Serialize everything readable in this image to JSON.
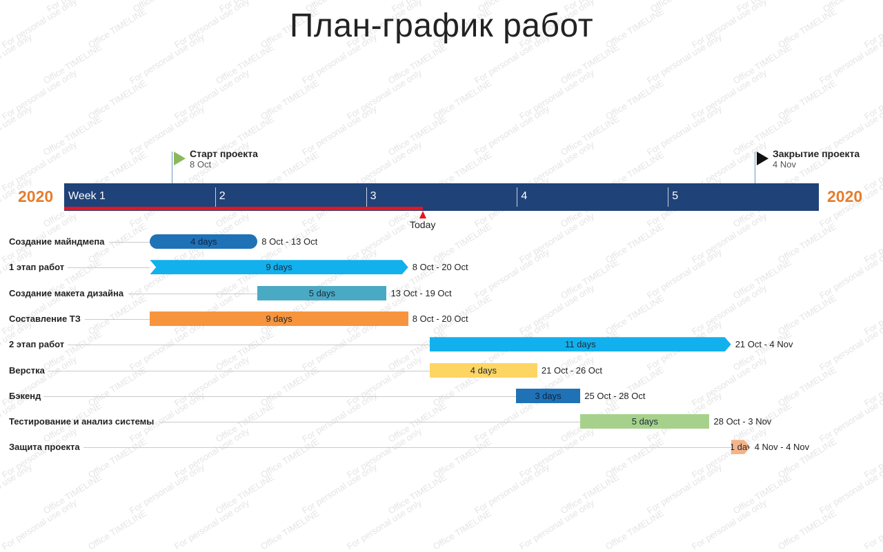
{
  "title": "План-график работ",
  "year_left": "2020",
  "year_right": "2020",
  "weeks": [
    "Week 1",
    "2",
    "3",
    "4",
    "5"
  ],
  "today": {
    "label": "Today",
    "date": "2020-10-21"
  },
  "milestones": [
    {
      "title": "Старт проекта",
      "date_label": "8 Oct",
      "date": "2020-10-08",
      "color": "#8cb85c"
    },
    {
      "title": "Закрытие проекта",
      "date_label": "4 Nov",
      "date": "2020-11-04",
      "color": "#111111"
    }
  ],
  "watermark": [
    "Office TIMELINE",
    "For personal use only"
  ],
  "chart_data": {
    "type": "gantt",
    "title": "План-график работ",
    "axis": {
      "unit": "week",
      "ticks": [
        "Week 1",
        "2",
        "3",
        "4",
        "5"
      ]
    },
    "tasks": [
      {
        "name": "Создание майндмепа",
        "start": "2020-10-08",
        "end": "2020-10-13",
        "duration": "4 days",
        "date_range": "8 Oct - 13 Oct",
        "color": "#1f72b6",
        "shape": "rounded"
      },
      {
        "name": "1 этап работ",
        "start": "2020-10-08",
        "end": "2020-10-20",
        "duration": "9 days",
        "date_range": "8 Oct - 20 Oct",
        "color": "#12b0ec",
        "shape": "chevron"
      },
      {
        "name": "Создание макета дизайна",
        "start": "2020-10-13",
        "end": "2020-10-19",
        "duration": "5 days",
        "date_range": "13 Oct - 19 Oct",
        "color": "#4aaac4",
        "shape": "rect"
      },
      {
        "name": "Составление ТЗ",
        "start": "2020-10-08",
        "end": "2020-10-20",
        "duration": "9 days",
        "date_range": "8 Oct - 20 Oct",
        "color": "#f7943e",
        "shape": "rect"
      },
      {
        "name": "2 этап работ",
        "start": "2020-10-21",
        "end": "2020-11-04",
        "duration": "11 days",
        "date_range": "21 Oct - 4 Nov",
        "color": "#12b0ec",
        "shape": "arrow"
      },
      {
        "name": "Верстка",
        "start": "2020-10-21",
        "end": "2020-10-26",
        "duration": "4 days",
        "date_range": "21 Oct - 26 Oct",
        "color": "#fdd563",
        "shape": "rect"
      },
      {
        "name": "Бэкенд",
        "start": "2020-10-25",
        "end": "2020-10-28",
        "duration": "3 days",
        "date_range": "25 Oct - 28 Oct",
        "color": "#1f72b6",
        "shape": "rect"
      },
      {
        "name": "Тестирование и анализ системы",
        "start": "2020-10-28",
        "end": "2020-11-03",
        "duration": "5 days",
        "date_range": "28 Oct - 3 Nov",
        "color": "#a6d18a",
        "shape": "rect"
      },
      {
        "name": "Защита проекта",
        "start": "2020-11-04",
        "end": "2020-11-04",
        "duration": "1 day",
        "date_range": "4 Nov - 4 Nov",
        "color": "#f4b488",
        "shape": "arrow"
      }
    ]
  }
}
